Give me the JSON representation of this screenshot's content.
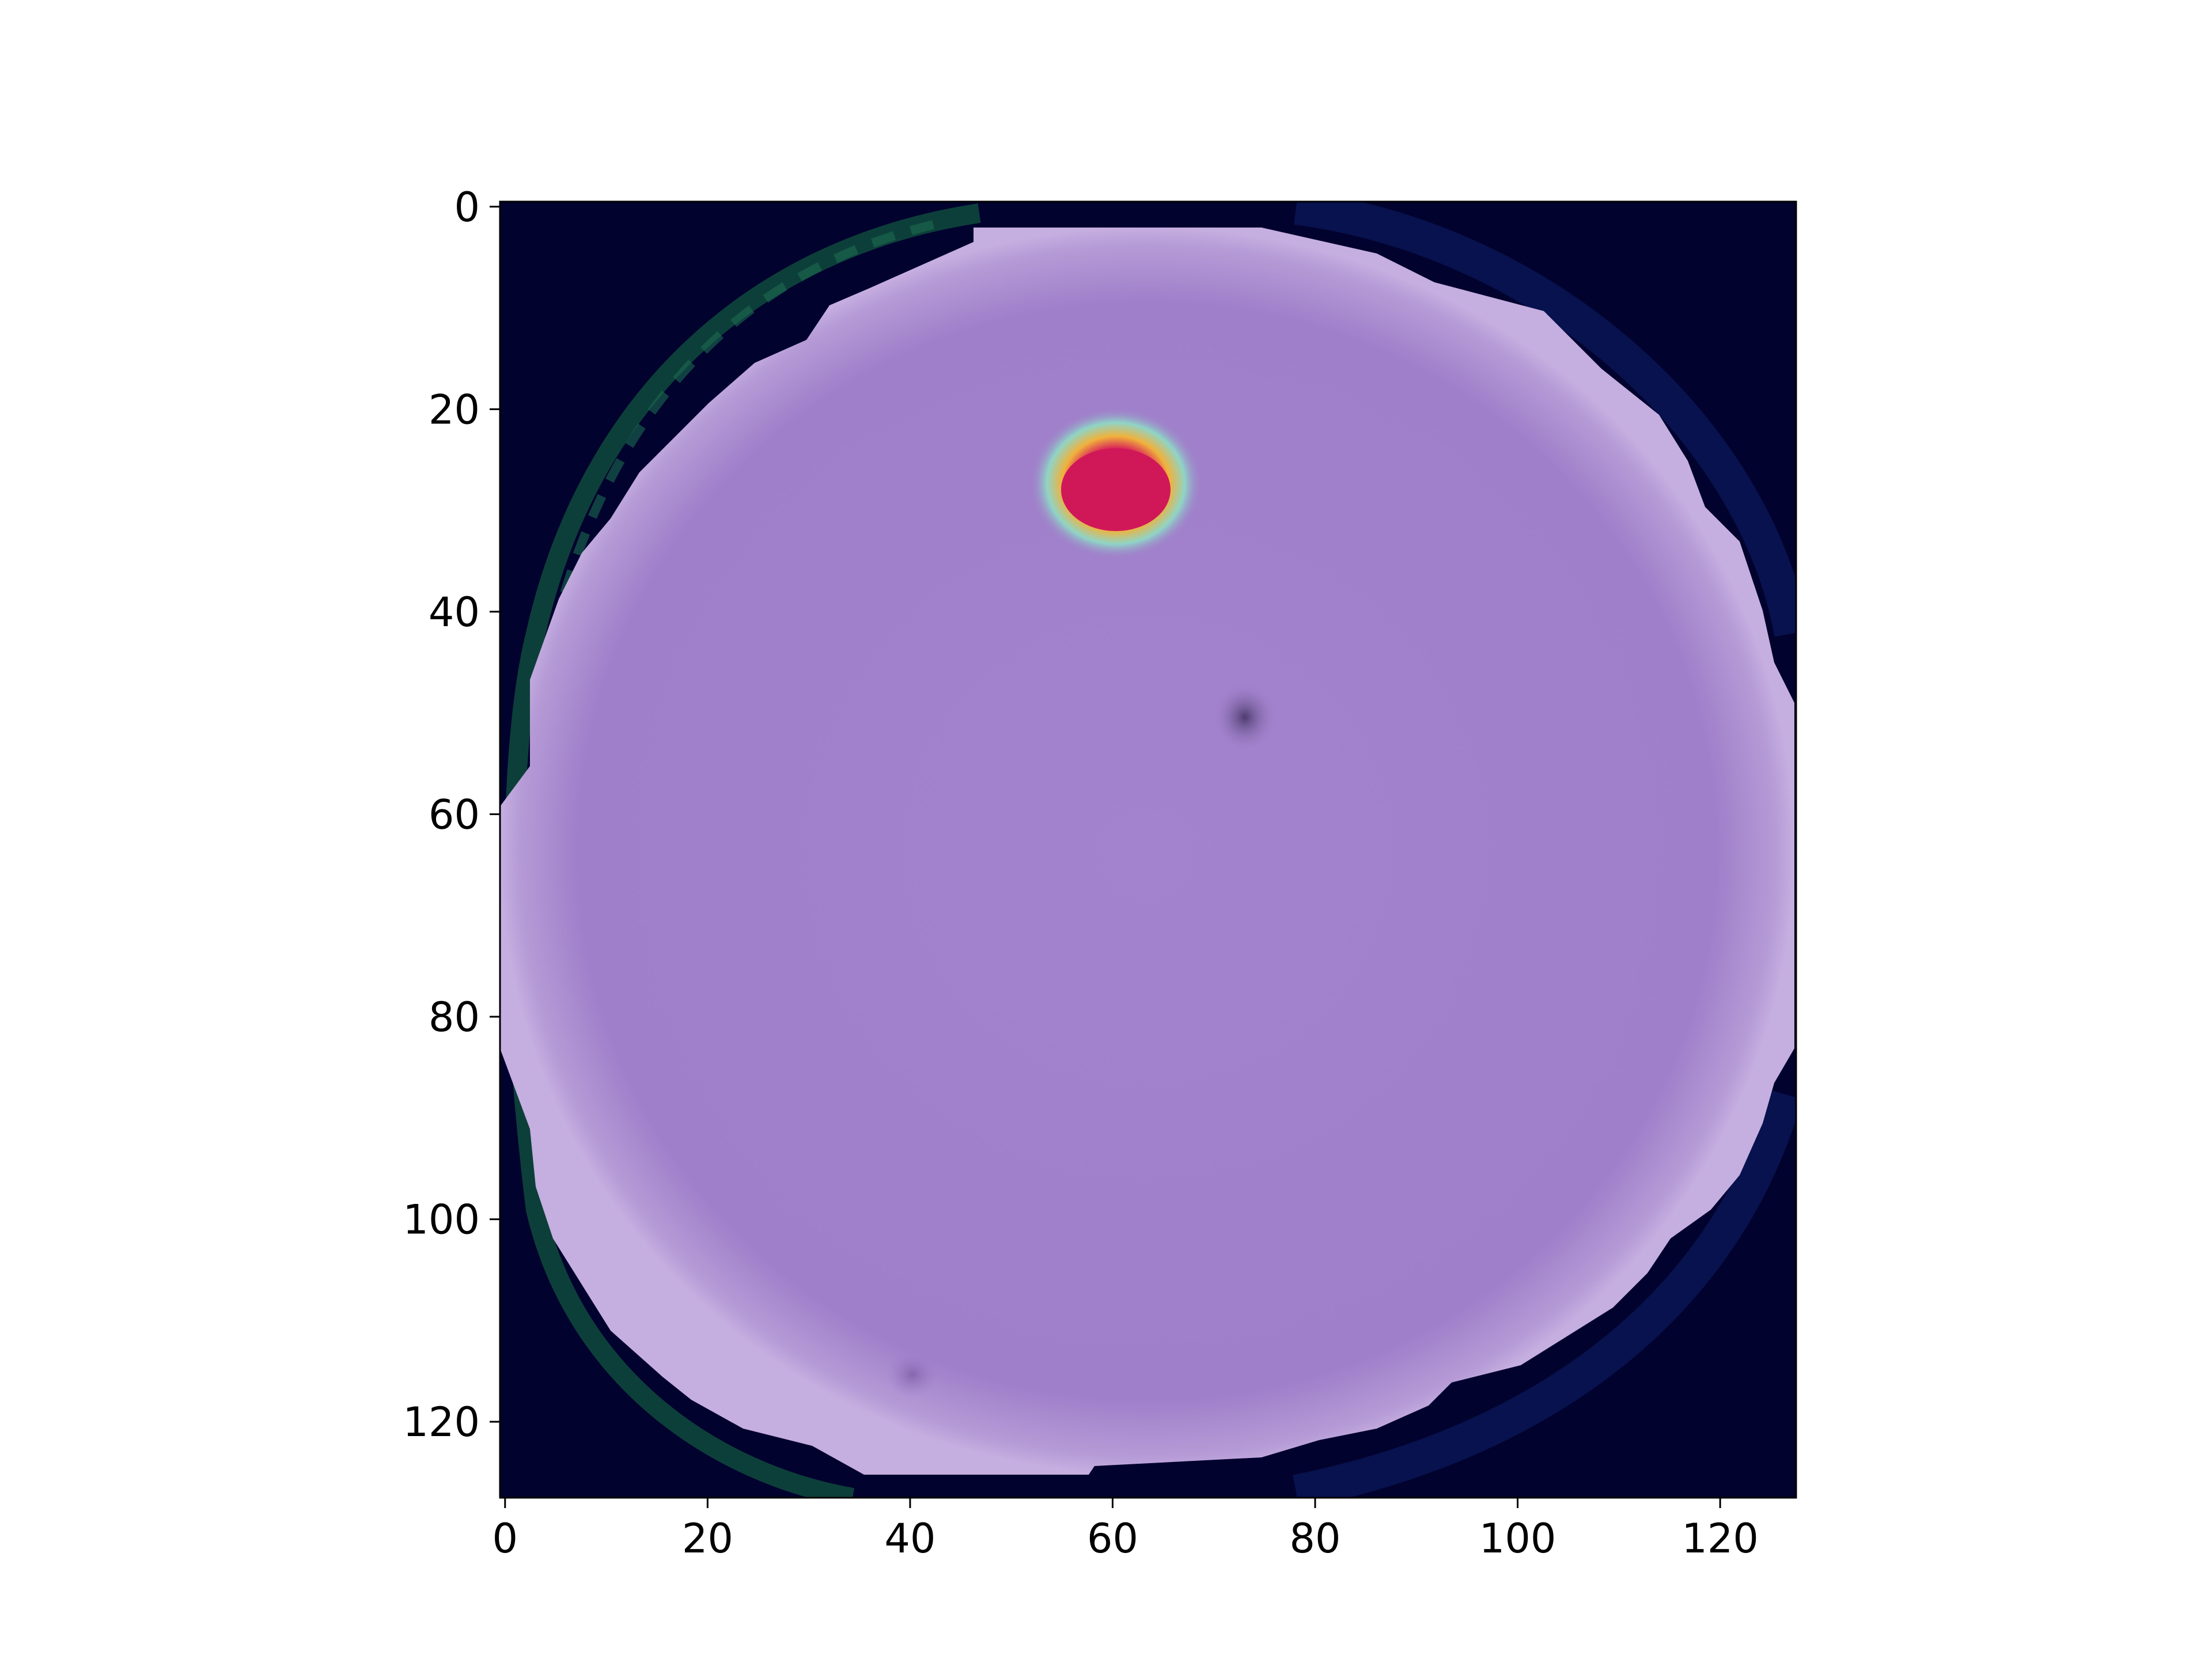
{
  "image": {
    "type": "heatmap overlay on microscopy image",
    "subject": "single red blood cell with a saliency heatmap overlay",
    "colors": {
      "background": "#02022e",
      "cell": "#9f7fca",
      "cell_edge": "#c5aee0",
      "ring_green": "#0f4a3c",
      "hotspot_outer": "#8fd4c6",
      "hotspot_mid": "#f0b23c",
      "hotspot_core": "#d21a58",
      "dark_spot": "#4d3c6d"
    }
  },
  "axes": {
    "x_ticks": [
      "0",
      "20",
      "40",
      "60",
      "80",
      "100",
      "120"
    ],
    "y_ticks": [
      "0",
      "20",
      "40",
      "60",
      "80",
      "100",
      "120"
    ],
    "xlim": [
      -0.5,
      127.5
    ],
    "ylim": [
      127.5,
      -0.5
    ]
  },
  "features": {
    "hotspot": {
      "x": 60,
      "y": 28,
      "rx": 6.5,
      "ry": 5
    },
    "dark_spot": {
      "x": 73,
      "y": 51
    },
    "faint_spot": {
      "x": 40,
      "y": 116
    }
  }
}
